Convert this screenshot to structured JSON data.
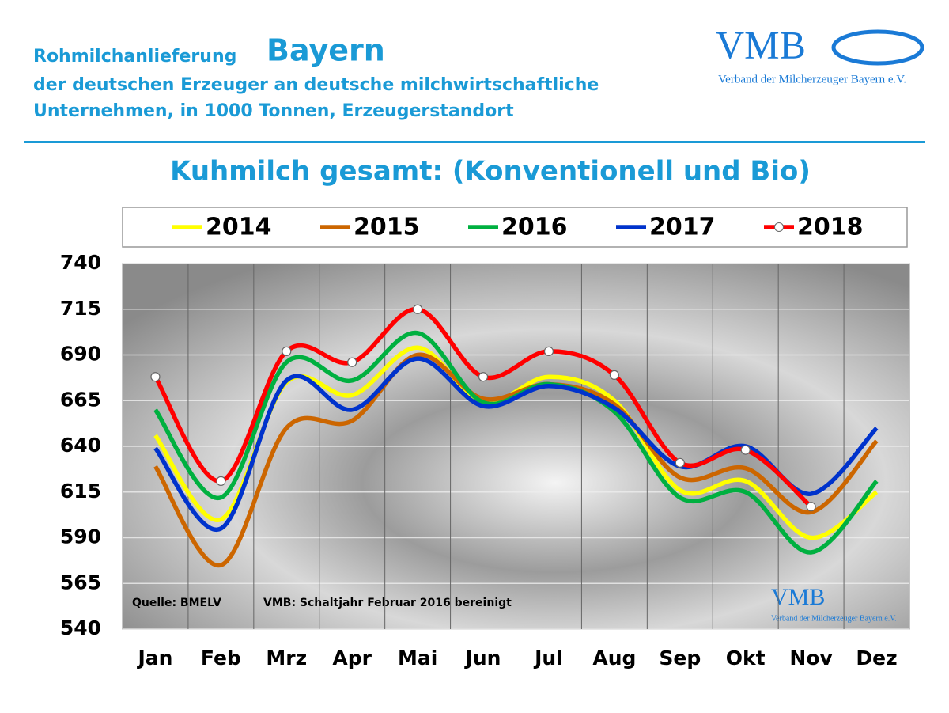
{
  "header": {
    "title_prefix": "Rohmilchanlieferung",
    "title_region": "Bayern",
    "subtitle_line1": "der deutschen Erzeuger an deutsche milchwirtschaftliche",
    "subtitle_line2": "Unternehmen, in 1000 Tonnen, Erzeugerstandort"
  },
  "logo": {
    "name": "VMB",
    "caption": "Verband der Milcherzeuger Bayern e.V."
  },
  "chart_data": {
    "type": "line",
    "title": "Kuhmilch gesamt: (Konventionell und Bio)",
    "categories": [
      "Jan",
      "Feb",
      "Mrz",
      "Apr",
      "Mai",
      "Jun",
      "Jul",
      "Aug",
      "Sep",
      "Okt",
      "Nov",
      "Dez"
    ],
    "series": [
      {
        "name": "2014",
        "color": "#ffff00",
        "values": [
          646,
          600,
          675,
          668,
          694,
          664,
          678,
          665,
          616,
          621,
          590,
          615
        ]
      },
      {
        "name": "2015",
        "color": "#cc6600",
        "values": [
          629,
          575,
          650,
          654,
          690,
          666,
          674,
          663,
          623,
          628,
          604,
          643
        ]
      },
      {
        "name": "2016",
        "color": "#00b040",
        "values": [
          660,
          612,
          686,
          676,
          702,
          664,
          674,
          659,
          612,
          615,
          582,
          621
        ]
      },
      {
        "name": "2017",
        "color": "#0033cc",
        "values": [
          639,
          595,
          676,
          660,
          688,
          662,
          673,
          661,
          629,
          640,
          614,
          650
        ]
      },
      {
        "name": "2018",
        "color": "#ff0000",
        "markers": true,
        "values": [
          678,
          621,
          692,
          686,
          715,
          678,
          692,
          679,
          631,
          638,
          607,
          null
        ]
      }
    ],
    "ylim": [
      540,
      740
    ],
    "yticks": [
      540,
      565,
      590,
      615,
      640,
      665,
      690,
      715,
      740
    ],
    "grid": true,
    "annotations": [
      "Quelle: BMELV",
      "VMB: Schaltjahr  Februar  2016  bereinigt"
    ]
  }
}
